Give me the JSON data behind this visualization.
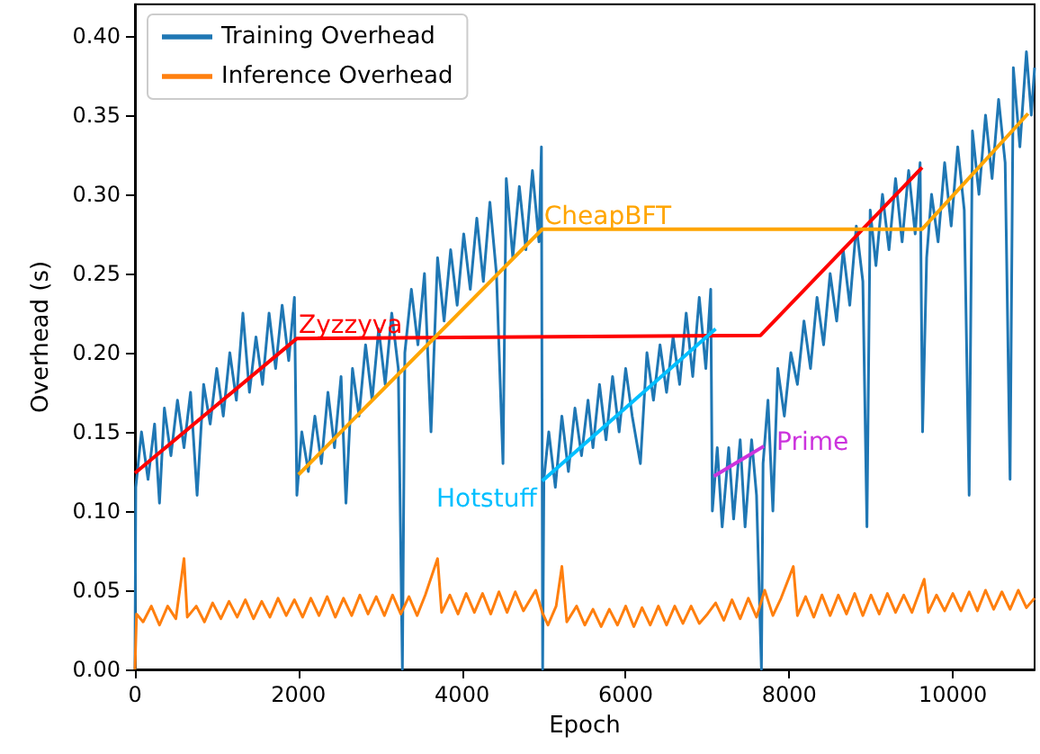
{
  "chart_data": {
    "type": "line",
    "xlabel": "Epoch",
    "ylabel": "Overhead (s)",
    "xlim": [
      0,
      11000
    ],
    "xticks": [
      0,
      2000,
      4000,
      6000,
      8000,
      10000
    ],
    "ylim": [
      0,
      0.42
    ],
    "yticks": [
      {
        "value": 0,
        "label": "0.00"
      },
      {
        "value": 0.05,
        "label": "0.05"
      },
      {
        "value": 0.1,
        "label": "0.10"
      },
      {
        "value": 0.15,
        "label": "0.15"
      },
      {
        "value": 0.2,
        "label": "0.20"
      },
      {
        "value": 0.25,
        "label": "0.25"
      },
      {
        "value": 0.3,
        "label": "0.30"
      },
      {
        "value": 0.35,
        "label": "0.35"
      },
      {
        "value": 0.4,
        "label": "0.40"
      }
    ],
    "grid": false,
    "legend": "top left",
    "marker": "none",
    "line_style": "solid",
    "series": [
      {
        "name": "Training Overhead",
        "color": "#1f77b4",
        "x": [
          0,
          10,
          80,
          160,
          240,
          300,
          360,
          440,
          520,
          600,
          680,
          760,
          840,
          920,
          1000,
          1080,
          1160,
          1240,
          1320,
          1400,
          1480,
          1560,
          1640,
          1720,
          1800,
          1880,
          1950,
          1980,
          2040,
          2120,
          2200,
          2280,
          2360,
          2440,
          2520,
          2580,
          2660,
          2740,
          2820,
          2900,
          2980,
          3060,
          3140,
          3220,
          3270,
          3300,
          3380,
          3460,
          3540,
          3620,
          3700,
          3780,
          3860,
          3940,
          4020,
          4100,
          4180,
          4260,
          4340,
          4420,
          4500,
          4540,
          4620,
          4700,
          4780,
          4860,
          4940,
          4970,
          4985,
          5000,
          5060,
          5140,
          5220,
          5300,
          5380,
          5460,
          5540,
          5600,
          5680,
          5760,
          5840,
          5920,
          6000,
          6080,
          6180,
          6260,
          6340,
          6420,
          6500,
          6580,
          6660,
          6740,
          6820,
          6900,
          6980,
          7040,
          7060,
          7120,
          7180,
          7260,
          7320,
          7400,
          7460,
          7540,
          7600,
          7660,
          7680,
          7740,
          7800,
          7860,
          7940,
          8020,
          8100,
          8180,
          8260,
          8340,
          8420,
          8500,
          8580,
          8660,
          8740,
          8820,
          8900,
          8950,
          8990,
          9060,
          9140,
          9220,
          9300,
          9380,
          9460,
          9540,
          9600,
          9630,
          9680,
          9740,
          9820,
          9900,
          9980,
          10060,
          10140,
          10200,
          10240,
          10320,
          10400,
          10480,
          10560,
          10640,
          10700,
          10740,
          10820,
          10900,
          10960,
          11000
        ],
        "values": [
          0,
          0.115,
          0.15,
          0.12,
          0.155,
          0.105,
          0.165,
          0.135,
          0.17,
          0.14,
          0.175,
          0.11,
          0.18,
          0.155,
          0.19,
          0.16,
          0.2,
          0.17,
          0.225,
          0.175,
          0.21,
          0.18,
          0.225,
          0.19,
          0.23,
          0.195,
          0.235,
          0.11,
          0.15,
          0.125,
          0.16,
          0.13,
          0.175,
          0.14,
          0.185,
          0.105,
          0.19,
          0.16,
          0.205,
          0.17,
          0.215,
          0.18,
          0.225,
          0.19,
          0,
          0.2,
          0.24,
          0.205,
          0.25,
          0.15,
          0.26,
          0.22,
          0.265,
          0.23,
          0.275,
          0.24,
          0.285,
          0.245,
          0.295,
          0.25,
          0.13,
          0.31,
          0.26,
          0.305,
          0.265,
          0.315,
          0.27,
          0.33,
          0,
          0.12,
          0.15,
          0.115,
          0.16,
          0.125,
          0.165,
          0.135,
          0.17,
          0.14,
          0.18,
          0.145,
          0.185,
          0.15,
          0.19,
          0.16,
          0.13,
          0.2,
          0.17,
          0.205,
          0.175,
          0.21,
          0.18,
          0.225,
          0.185,
          0.235,
          0.19,
          0.24,
          0.1,
          0.14,
          0.09,
          0.14,
          0.095,
          0.145,
          0.09,
          0.145,
          0.11,
          0,
          0.13,
          0.17,
          0.1,
          0.19,
          0.16,
          0.2,
          0.18,
          0.22,
          0.19,
          0.235,
          0.205,
          0.25,
          0.22,
          0.265,
          0.23,
          0.28,
          0.245,
          0.09,
          0.29,
          0.255,
          0.3,
          0.265,
          0.31,
          0.27,
          0.315,
          0.275,
          0.32,
          0.15,
          0.26,
          0.3,
          0.27,
          0.32,
          0.28,
          0.33,
          0.29,
          0.11,
          0.34,
          0.3,
          0.35,
          0.31,
          0.36,
          0.32,
          0.12,
          0.38,
          0.33,
          0.39,
          0.35,
          0.38
        ]
      },
      {
        "name": "Inference Overhead",
        "color": "#ff7f0e",
        "x": [
          0,
          20,
          100,
          200,
          300,
          400,
          500,
          600,
          640,
          750,
          850,
          950,
          1050,
          1150,
          1250,
          1350,
          1450,
          1550,
          1650,
          1750,
          1850,
          1950,
          2050,
          2150,
          2250,
          2350,
          2450,
          2550,
          2650,
          2750,
          2850,
          2950,
          3050,
          3150,
          3250,
          3350,
          3450,
          3550,
          3700,
          3750,
          3850,
          3950,
          4050,
          4150,
          4250,
          4350,
          4450,
          4550,
          4650,
          4750,
          4900,
          4980,
          5050,
          5150,
          5220,
          5280,
          5400,
          5500,
          5600,
          5700,
          5800,
          5900,
          6000,
          6100,
          6200,
          6300,
          6400,
          6500,
          6600,
          6700,
          6800,
          6900,
          7000,
          7100,
          7200,
          7300,
          7400,
          7500,
          7600,
          7700,
          7800,
          7900,
          8050,
          8100,
          8200,
          8300,
          8400,
          8500,
          8600,
          8700,
          8800,
          8900,
          9000,
          9100,
          9200,
          9300,
          9400,
          9500,
          9650,
          9700,
          9800,
          9900,
          10000,
          10100,
          10200,
          10300,
          10400,
          10500,
          10600,
          10700,
          10800,
          10900,
          11000
        ],
        "values": [
          0,
          0.035,
          0.03,
          0.04,
          0.028,
          0.04,
          0.032,
          0.07,
          0.033,
          0.04,
          0.03,
          0.042,
          0.032,
          0.043,
          0.033,
          0.044,
          0.032,
          0.043,
          0.033,
          0.045,
          0.034,
          0.044,
          0.033,
          0.045,
          0.034,
          0.046,
          0.033,
          0.045,
          0.034,
          0.047,
          0.035,
          0.046,
          0.034,
          0.047,
          0.035,
          0.046,
          0.034,
          0.047,
          0.07,
          0.036,
          0.047,
          0.035,
          0.048,
          0.036,
          0.048,
          0.035,
          0.049,
          0.036,
          0.049,
          0.037,
          0.05,
          0.036,
          0.028,
          0.04,
          0.065,
          0.03,
          0.04,
          0.028,
          0.038,
          0.027,
          0.038,
          0.028,
          0.04,
          0.027,
          0.039,
          0.028,
          0.04,
          0.028,
          0.04,
          0.029,
          0.04,
          0.029,
          0.035,
          0.042,
          0.031,
          0.044,
          0.032,
          0.045,
          0.033,
          0.05,
          0.034,
          0.045,
          0.065,
          0.034,
          0.046,
          0.033,
          0.047,
          0.034,
          0.047,
          0.035,
          0.048,
          0.034,
          0.047,
          0.035,
          0.048,
          0.036,
          0.047,
          0.036,
          0.057,
          0.036,
          0.047,
          0.037,
          0.048,
          0.037,
          0.049,
          0.037,
          0.05,
          0.038,
          0.049,
          0.038,
          0.05,
          0.039,
          0.045
        ]
      },
      {
        "type": "line",
        "name": "Zyzzyva",
        "color": "#ff0000",
        "x": [
          0,
          1980,
          7650,
          9625
        ],
        "values": [
          0.124,
          0.209,
          0.211,
          0.317
        ]
      },
      {
        "type": "line",
        "name": "CheapBFT",
        "color": "#ffa500",
        "x": [
          2000,
          4980,
          9625,
          10920
        ],
        "values": [
          0.123,
          0.278,
          0.278,
          0.351
        ]
      },
      {
        "type": "line",
        "name": "Hotstuff",
        "color": "#00bfff",
        "x": [
          4980,
          7100
        ],
        "values": [
          0.119,
          0.215
        ]
      },
      {
        "type": "line",
        "name": "Prime",
        "color": "#cc33dd",
        "x": [
          7080,
          7690
        ],
        "values": [
          0.122,
          0.141
        ]
      }
    ]
  }
}
